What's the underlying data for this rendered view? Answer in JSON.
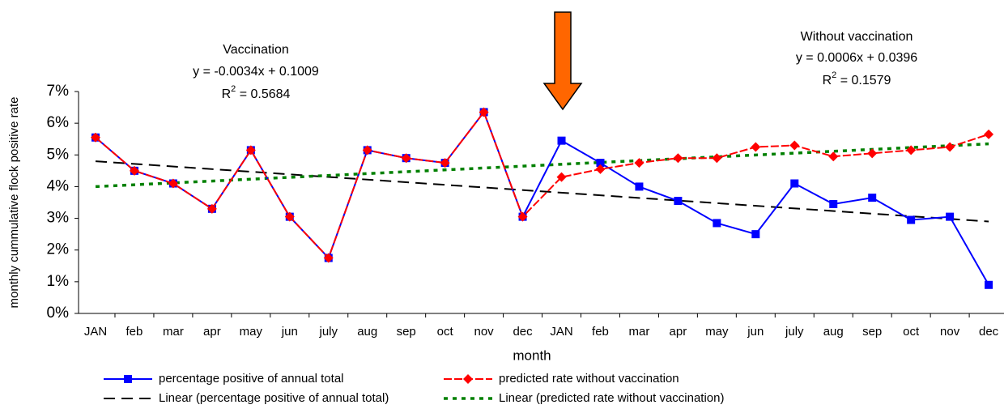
{
  "chart_data": {
    "type": "line",
    "x_label": "month",
    "y_label": "monthly cummulative flock positive rate",
    "categories": [
      "JAN",
      "feb",
      "mar",
      "apr",
      "may",
      "jun",
      "july",
      "aug",
      "sep",
      "oct",
      "nov",
      "dec",
      "JAN",
      "feb",
      "mar",
      "apr",
      "may",
      "jun",
      "july",
      "aug",
      "sep",
      "oct",
      "nov",
      "dec"
    ],
    "ylim": [
      0,
      7
    ],
    "yticks": [
      {
        "value": 0,
        "label": "0%"
      },
      {
        "value": 1,
        "label": "1%"
      },
      {
        "value": 2,
        "label": "2%"
      },
      {
        "value": 3,
        "label": "3%"
      },
      {
        "value": 4,
        "label": "4%"
      },
      {
        "value": 5,
        "label": "5%"
      },
      {
        "value": 6,
        "label": "6%"
      },
      {
        "value": 7,
        "label": "7%"
      }
    ],
    "series": [
      {
        "name": "percentage positive of annual total",
        "color": "#0000ff",
        "marker": "square",
        "values": [
          5.55,
          4.5,
          4.1,
          3.3,
          5.15,
          3.05,
          1.75,
          5.15,
          4.9,
          4.75,
          6.35,
          3.05,
          5.45,
          4.75,
          4.0,
          3.55,
          2.85,
          2.5,
          4.1,
          3.45,
          3.65,
          2.95,
          3.05,
          0.9
        ]
      },
      {
        "name": "predicted rate without vaccination",
        "color": "#ff0000",
        "marker": "diamond",
        "values": [
          5.55,
          4.5,
          4.1,
          3.3,
          5.15,
          3.05,
          1.75,
          5.15,
          4.9,
          4.75,
          6.35,
          3.05,
          4.3,
          4.55,
          4.75,
          4.9,
          4.9,
          5.25,
          5.3,
          4.95,
          5.05,
          5.15,
          5.25,
          5.65
        ]
      }
    ],
    "trendlines": [
      {
        "name": "Linear (percentage positive of annual total)",
        "color": "#000000",
        "values": [
          4.8,
          2.9
        ]
      },
      {
        "name": "Linear (predicted rate without vaccination)",
        "color": "#008000",
        "values": [
          4.0,
          5.35
        ]
      }
    ],
    "annotations": [
      {
        "title": "Vaccination",
        "equation": "y = -0.0034x + 0.1009",
        "r": "R",
        "sup": "2",
        "r_value": " = 0.5684"
      },
      {
        "title": "Without vaccination",
        "equation": "y = 0.0006x + 0.0396",
        "r": "R",
        "sup": "2",
        "r_value": " = 0.1579"
      }
    ]
  }
}
